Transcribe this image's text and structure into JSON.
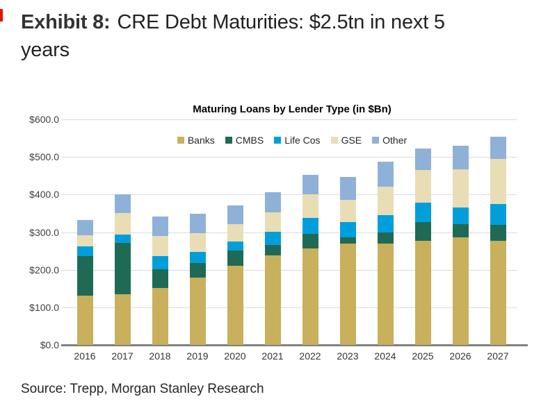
{
  "page": {
    "exhibit_label": "Exhibit 8:",
    "exhibit_title": "CRE Debt Maturities: $2.5tn in next 5 years",
    "source": "Source: Trepp, Morgan Stanley Research",
    "accent_red": "#E3120B"
  },
  "chart_data": {
    "type": "bar",
    "stacked": true,
    "title": "Maturing Loans by Lender Type (in $Bn)",
    "categories": [
      "2016",
      "2017",
      "2018",
      "2019",
      "2020",
      "2021",
      "2022",
      "2023",
      "2024",
      "2025",
      "2026",
      "2027"
    ],
    "series": [
      {
        "name": "Banks",
        "color": "#C8B05C",
        "values": [
          132,
          135,
          151,
          179,
          210,
          238,
          257,
          270,
          270,
          277,
          286,
          277
        ]
      },
      {
        "name": "CMBS",
        "color": "#1F6A55",
        "values": [
          104,
          136,
          51,
          39,
          41,
          27,
          39,
          17,
          29,
          50,
          35,
          43
        ]
      },
      {
        "name": "Life Cos",
        "color": "#009FDB",
        "values": [
          27,
          22,
          34,
          29,
          25,
          36,
          41,
          40,
          46,
          51,
          44,
          54
        ]
      },
      {
        "name": "GSE",
        "color": "#E8DDB5",
        "values": [
          28,
          57,
          54,
          50,
          46,
          52,
          63,
          58,
          76,
          87,
          102,
          120
        ]
      },
      {
        "name": "Other",
        "color": "#8FB1D8",
        "values": [
          41,
          50,
          52,
          52,
          50,
          54,
          52,
          62,
          66,
          57,
          63,
          60
        ]
      }
    ],
    "totals": [
      332,
      400,
      342,
      349,
      372,
      407,
      452,
      447,
      487,
      522,
      530,
      554
    ],
    "y_axis": {
      "min": 0,
      "max": 600,
      "step": 100,
      "tick_labels": [
        "$0.0",
        "$100.0",
        "$200.0",
        "$300.0",
        "$400.0",
        "$500.0",
        "$600.0"
      ]
    },
    "grid": true,
    "legend_position": "top",
    "grid_color": "#DADADA",
    "axis_color": "#808080"
  }
}
